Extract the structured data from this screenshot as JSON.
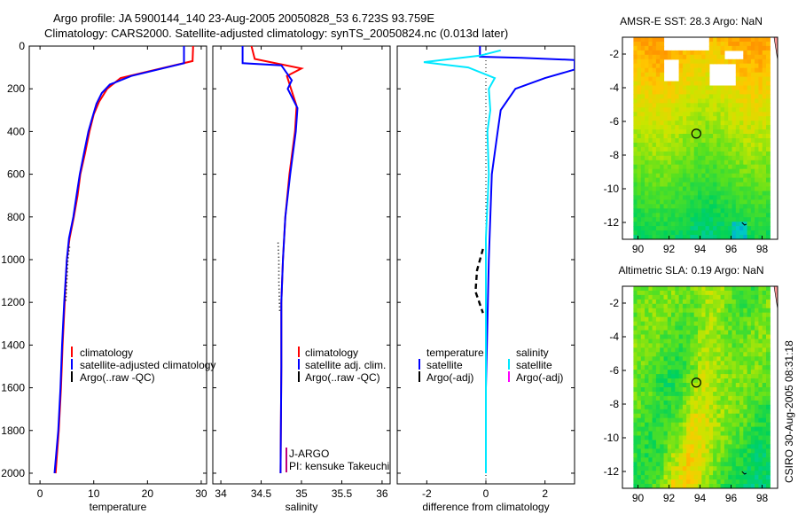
{
  "header": {
    "line1": "Argo profile: JA 5900144_140 23-Aug-2005 20050828_53 6.723S 93.759E",
    "line2": "Climatology: CARS2000. Satellite-adjusted climatology: synTS_20050824.nc (0.013d later)"
  },
  "side_label": "CSIRO 30-Aug-2005 08:31:18",
  "colors": {
    "climatology": "#ff0000",
    "satellite": "#0000ff",
    "argo": "#000000",
    "salinity_satellite": "#00e8ff",
    "argo_adj_salinity": "#ff00ff"
  },
  "chart_data": [
    {
      "type": "line",
      "xlabel": "temperature",
      "xlim": [
        -2,
        31
      ],
      "xticks": [
        0,
        10,
        20,
        30
      ],
      "ylim": [
        2050,
        0
      ],
      "yticks": [
        0,
        200,
        400,
        600,
        800,
        1000,
        1200,
        1400,
        1600,
        1800,
        2000
      ],
      "series": [
        {
          "name": "climatology",
          "color": "#ff0000",
          "style": "solid",
          "points": [
            [
              28.5,
              0
            ],
            [
              28.4,
              70
            ],
            [
              20,
              120
            ],
            [
              15,
              150
            ],
            [
              12.5,
              200
            ],
            [
              11,
              260
            ],
            [
              10,
              320
            ],
            [
              9.2,
              400
            ],
            [
              8.4,
              500
            ],
            [
              7.5,
              600
            ],
            [
              7,
              700
            ],
            [
              6.3,
              800
            ],
            [
              5.5,
              900
            ],
            [
              5,
              1000
            ],
            [
              4.6,
              1200
            ],
            [
              4.2,
              1400
            ],
            [
              3.9,
              1600
            ],
            [
              3.5,
              1800
            ],
            [
              2.9,
              2000
            ]
          ]
        },
        {
          "name": "satellite-adjusted climatology",
          "color": "#0000ff",
          "style": "solid",
          "points": [
            [
              26.8,
              0
            ],
            [
              26.8,
              80
            ],
            [
              17,
              140
            ],
            [
              13,
              180
            ],
            [
              11.5,
              220
            ],
            [
              10.5,
              270
            ],
            [
              9.8,
              330
            ],
            [
              9,
              400
            ],
            [
              8.2,
              500
            ],
            [
              7.4,
              600
            ],
            [
              6.8,
              700
            ],
            [
              6.2,
              800
            ],
            [
              5.4,
              900
            ],
            [
              5,
              1000
            ],
            [
              4.5,
              1200
            ],
            [
              4.1,
              1400
            ],
            [
              3.8,
              1600
            ],
            [
              3.4,
              1800
            ],
            [
              2.7,
              2000
            ]
          ]
        },
        {
          "name": "Argo(..raw -QC)",
          "color": "#000000",
          "style": "dotted",
          "points": [
            [
              5.5,
              940
            ],
            [
              5.2,
              1000
            ],
            [
              5.0,
              1100
            ],
            [
              4.8,
              1200
            ]
          ]
        }
      ]
    },
    {
      "type": "line",
      "xlabel": "salinity",
      "xlim": [
        33.9,
        36.1
      ],
      "xticks": [
        34,
        34.5,
        35,
        35.5,
        36
      ],
      "ylim": [
        2050,
        0
      ],
      "series": [
        {
          "name": "climatology",
          "color": "#ff0000",
          "style": "solid",
          "points": [
            [
              34.38,
              0
            ],
            [
              34.42,
              60
            ],
            [
              35.0,
              105
            ],
            [
              34.82,
              140
            ],
            [
              34.87,
              200
            ],
            [
              34.94,
              280
            ],
            [
              34.92,
              400
            ],
            [
              34.85,
              600
            ],
            [
              34.8,
              800
            ],
            [
              34.77,
              1000
            ],
            [
              34.75,
              1200
            ],
            [
              34.75,
              1500
            ],
            [
              34.74,
              2000
            ]
          ]
        },
        {
          "name": "satellite adj. clim.",
          "color": "#0000ff",
          "style": "solid",
          "points": [
            [
              34.27,
              0
            ],
            [
              34.27,
              80
            ],
            [
              34.75,
              90
            ],
            [
              34.88,
              160
            ],
            [
              34.83,
              200
            ],
            [
              34.95,
              290
            ],
            [
              34.93,
              400
            ],
            [
              34.86,
              600
            ],
            [
              34.8,
              800
            ],
            [
              34.77,
              1000
            ],
            [
              34.75,
              1200
            ],
            [
              34.75,
              1500
            ],
            [
              34.74,
              2000
            ]
          ]
        },
        {
          "name": "Argo(..raw -QC)",
          "color": "#000000",
          "style": "dotted",
          "points": [
            [
              34.71,
              920
            ],
            [
              34.72,
              1000
            ],
            [
              34.72,
              1100
            ],
            [
              34.73,
              1250
            ]
          ]
        }
      ],
      "annotations": [
        "J-ARGO",
        "PI: kensuke Takeuchi"
      ]
    },
    {
      "type": "line",
      "xlabel": "difference from climatology",
      "xlim": [
        -3,
        3
      ],
      "xticks": [
        -2,
        0,
        2
      ],
      "ylim": [
        2050,
        0
      ],
      "series": [
        {
          "name": "temperature satellite",
          "color": "#0000ff",
          "style": "solid",
          "points": [
            [
              -0.2,
              0
            ],
            [
              -0.2,
              50
            ],
            [
              1.2,
              55
            ],
            [
              3.0,
              65
            ],
            [
              3.0,
              110
            ],
            [
              2.0,
              150
            ],
            [
              1.0,
              200
            ],
            [
              0.5,
              300
            ],
            [
              0.4,
              400
            ],
            [
              0.3,
              500
            ],
            [
              0.2,
              600
            ],
            [
              0.15,
              800
            ],
            [
              0.1,
              1000
            ],
            [
              0.05,
              1300
            ],
            [
              0.0,
              1600
            ],
            [
              0.0,
              2000
            ]
          ]
        },
        {
          "name": "salinity satellite",
          "color": "#00e8ff",
          "style": "solid",
          "points": [
            [
              0.5,
              20
            ],
            [
              -0.2,
              45
            ],
            [
              -2.1,
              75
            ],
            [
              -0.6,
              100
            ],
            [
              0.3,
              150
            ],
            [
              0.1,
              200
            ],
            [
              0.15,
              300
            ],
            [
              0.05,
              400
            ],
            [
              0.1,
              600
            ],
            [
              0.0,
              900
            ],
            [
              0.0,
              1200
            ],
            [
              0.0,
              1600
            ],
            [
              0.0,
              2000
            ]
          ]
        },
        {
          "name": "temperature Argo(-adj)",
          "color": "#000000",
          "style": "dashed",
          "points": [
            [
              -0.1,
              950
            ],
            [
              -0.3,
              1050
            ],
            [
              -0.35,
              1150
            ],
            [
              -0.1,
              1250
            ]
          ]
        }
      ],
      "legend": {
        "headers": [
          "temperature",
          "salinity"
        ],
        "entries": [
          "satellite",
          "Argo(-adj)",
          "satellite",
          "Argo(-adj)"
        ]
      }
    },
    {
      "type": "heatmap",
      "title": "AMSR-E SST: 28.3 Argo: NaN",
      "xlim": [
        89,
        99
      ],
      "ylim": [
        -13,
        -1
      ],
      "xticks": [
        90,
        92,
        94,
        96,
        98
      ],
      "yticks": [
        -2,
        -4,
        -6,
        -8,
        -10,
        -12
      ],
      "marker": [
        93.759,
        -6.723
      ]
    },
    {
      "type": "heatmap",
      "title": "Altimetric SLA: 0.19 Argo: NaN",
      "xlim": [
        89,
        99
      ],
      "ylim": [
        -13,
        -1
      ],
      "xticks": [
        90,
        92,
        94,
        96,
        98
      ],
      "yticks": [
        -2,
        -4,
        -6,
        -8,
        -10,
        -12
      ],
      "marker": [
        93.759,
        -6.723
      ]
    }
  ]
}
